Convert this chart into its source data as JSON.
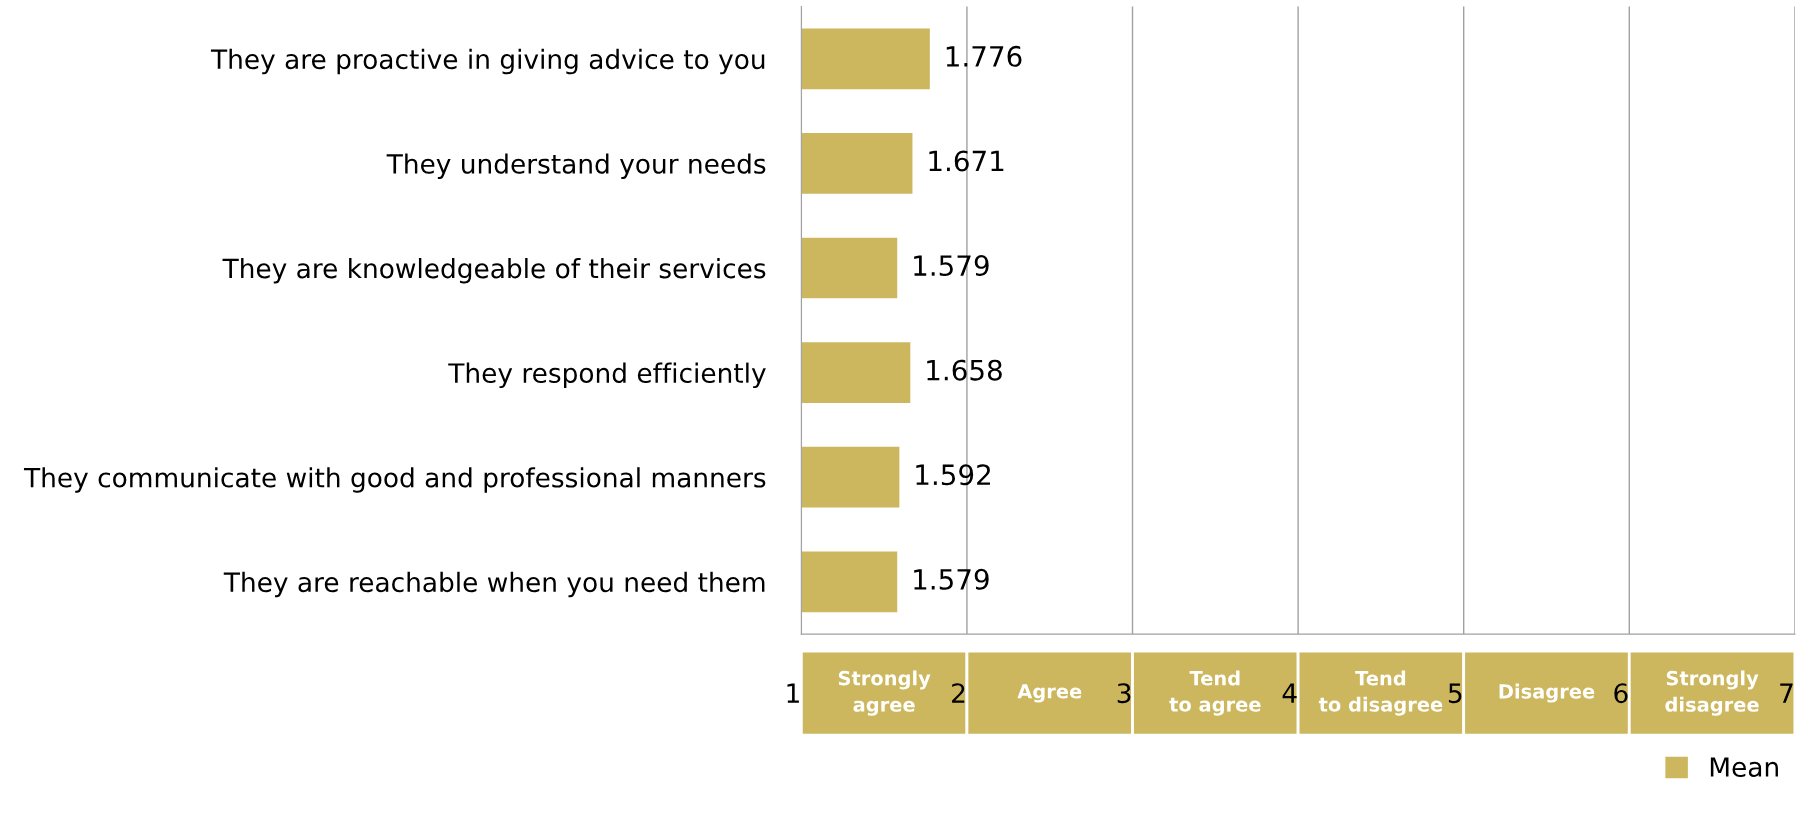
{
  "chart_data": {
    "type": "bar",
    "orientation": "horizontal",
    "categories": [
      "They are proactive in giving advice to you",
      "They understand your needs",
      "They are knowledgeable of their services",
      "They respond efficiently",
      "They communicate with good and professional manners",
      "They are reachable when you need them"
    ],
    "series": [
      {
        "name": "Mean",
        "color": "#cdb75e",
        "values": [
          1.776,
          1.671,
          1.579,
          1.658,
          1.592,
          1.579
        ]
      }
    ],
    "data_labels": true,
    "xlim": [
      1,
      7
    ],
    "xticks": [
      1,
      2,
      3,
      4,
      5,
      6,
      7
    ],
    "grid": "x",
    "legend": "bottom right",
    "annotations": [
      "Strongly agree",
      "Agree",
      "Tend to agree",
      "Tend to disagree",
      "Disagree",
      "Strongly disagree"
    ]
  }
}
